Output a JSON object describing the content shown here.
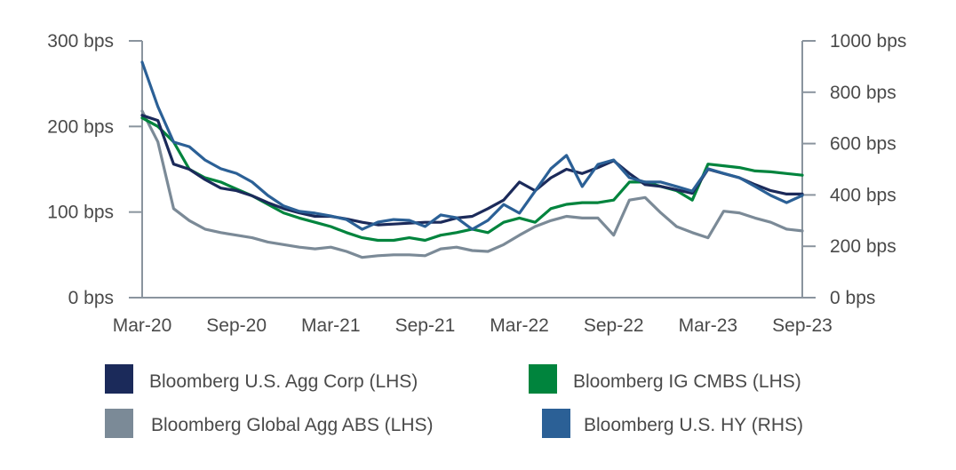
{
  "chart_data": {
    "type": "line",
    "title": "",
    "x": [
      "Mar-20",
      "Apr-20",
      "May-20",
      "Jun-20",
      "Jul-20",
      "Aug-20",
      "Sep-20",
      "Oct-20",
      "Nov-20",
      "Dec-20",
      "Jan-21",
      "Feb-21",
      "Mar-21",
      "Apr-21",
      "May-21",
      "Jun-21",
      "Jul-21",
      "Aug-21",
      "Sep-21",
      "Oct-21",
      "Nov-21",
      "Dec-21",
      "Jan-22",
      "Feb-22",
      "Mar-22",
      "Apr-22",
      "May-22",
      "Jun-22",
      "Jul-22",
      "Aug-22",
      "Sep-22",
      "Oct-22",
      "Nov-22",
      "Dec-22",
      "Jan-23",
      "Feb-23",
      "Mar-23",
      "Apr-23",
      "May-23",
      "Jun-23",
      "Jul-23",
      "Aug-23",
      "Sep-23"
    ],
    "x_tick_labels": [
      "Mar-20",
      "Sep-20",
      "Mar-21",
      "Sep-21",
      "Mar-22",
      "Sep-22",
      "Mar-23",
      "Sep-23"
    ],
    "y_left": {
      "range": [
        0,
        300
      ],
      "ticks": [
        0,
        100,
        200,
        300
      ],
      "tick_labels": [
        "0 bps",
        "100 bps",
        "200 bps",
        "300 bps"
      ]
    },
    "y_right": {
      "range": [
        0,
        1000
      ],
      "ticks": [
        0,
        200,
        400,
        600,
        800,
        1000
      ],
      "tick_labels": [
        "0 bps",
        "200 bps",
        "400 bps",
        "600 bps",
        "800 bps",
        "1000 bps"
      ]
    },
    "legend_placement": "bottom",
    "series": [
      {
        "name": "Bloomberg U.S. Agg Corp (LHS)",
        "axis": "left",
        "color": "#1b2a5a",
        "values": [
          213,
          207,
          156,
          150,
          138,
          128,
          125,
          119,
          111,
          104,
          99,
          95,
          95,
          92,
          88,
          85,
          86,
          87,
          88,
          88,
          93,
          95,
          104,
          114,
          135,
          125,
          140,
          150,
          145,
          152,
          160,
          145,
          132,
          130,
          126,
          122,
          150,
          145,
          140,
          132,
          125,
          121,
          121
        ]
      },
      {
        "name": "Bloomberg IG CMBS (LHS)",
        "axis": "left",
        "color": "#00843d",
        "values": [
          210,
          200,
          182,
          150,
          140,
          135,
          127,
          119,
          109,
          99,
          93,
          88,
          83,
          76,
          70,
          67,
          67,
          70,
          67,
          73,
          76,
          80,
          76,
          88,
          93,
          88,
          104,
          109,
          111,
          111,
          114,
          135,
          135,
          130,
          125,
          114,
          156,
          154,
          152,
          148,
          147,
          145,
          143
        ]
      },
      {
        "name": "Bloomberg Global Agg ABS (LHS)",
        "axis": "left",
        "color": "#7b8a97",
        "values": [
          218,
          182,
          104,
          90,
          80,
          76,
          73,
          70,
          65,
          62,
          59,
          57,
          59,
          54,
          47,
          49,
          50,
          50,
          49,
          57,
          59,
          55,
          54,
          62,
          73,
          83,
          90,
          95,
          93,
          93,
          73,
          114,
          117,
          99,
          83,
          76,
          70,
          101,
          99,
          93,
          88,
          80,
          78
        ]
      },
      {
        "name": "Bloomberg U.S. HY (RHS)",
        "axis": "right",
        "color": "#2b6096",
        "values": [
          917,
          744,
          606,
          588,
          536,
          502,
          484,
          450,
          398,
          357,
          336,
          329,
          318,
          304,
          266,
          294,
          304,
          301,
          277,
          322,
          311,
          266,
          301,
          363,
          329,
          415,
          502,
          554,
          433,
          519,
          536,
          467,
          450,
          450,
          433,
          415,
          502,
          484,
          467,
          433,
          398,
          370,
          398
        ]
      }
    ]
  }
}
